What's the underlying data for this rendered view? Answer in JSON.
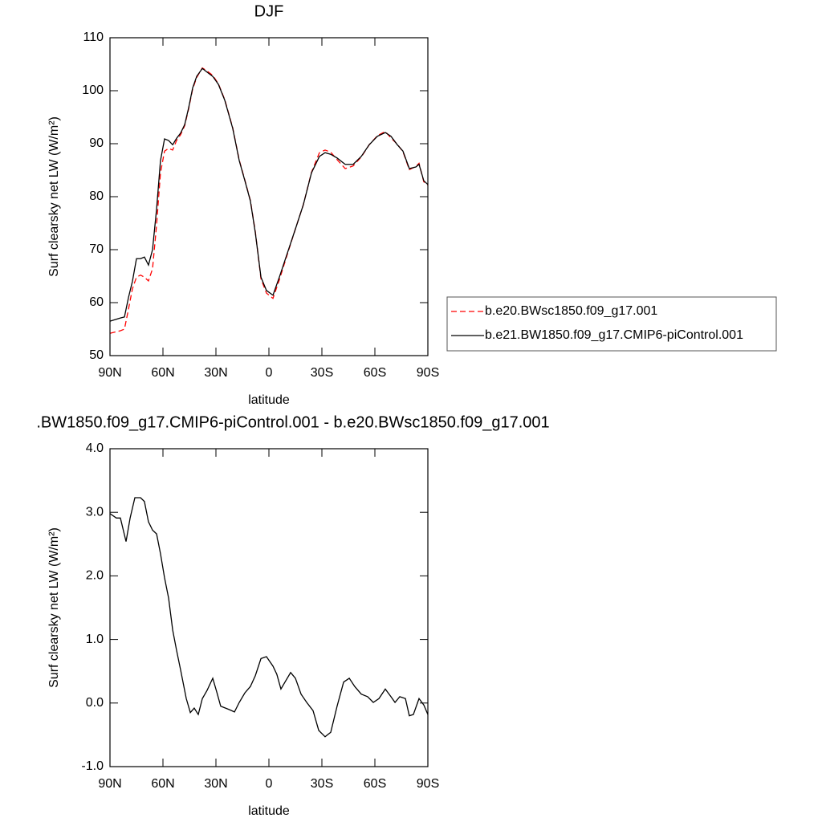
{
  "chart_data": [
    {
      "type": "line",
      "title": "DJF",
      "xlabel": "latitude",
      "ylabel": "Surf clearsky net LW (W/m²)",
      "x": [
        90,
        84.1,
        81.8,
        79.5,
        77.3,
        75.0,
        72.7,
        70.5,
        68.2,
        65.9,
        63.6,
        61.4,
        59.1,
        56.8,
        54.5,
        52.3,
        50.0,
        47.7,
        45.5,
        43.2,
        40.9,
        37.7,
        35.0,
        31.8,
        28.6,
        25.0,
        20.5,
        16.8,
        13.6,
        10.5,
        7.7,
        4.5,
        1.4,
        -2.3,
        -5.9,
        -10.5,
        -15.0,
        -19.5,
        -24.1,
        -28.6,
        -31.8,
        -35.0,
        -38.6,
        -43.2,
        -47.7,
        -52.3,
        -56.8,
        -61.4,
        -65.9,
        -69.1,
        -72.7,
        -75.9,
        -79.5,
        -83.2,
        -85.0,
        -87.7,
        -90
      ],
      "series": [
        {
          "name": "b.e20.BWsc1850.f09_g17.001",
          "color": "#ff0000",
          "line_style": "dashed",
          "values": [
            54.2,
            54.7,
            55.0,
            58.8,
            62.6,
            64.8,
            65.2,
            64.8,
            64.1,
            66.4,
            74.7,
            84.5,
            88.6,
            89.1,
            88.8,
            90.6,
            91.7,
            93.4,
            96.5,
            100.3,
            102.5,
            104.3,
            103.7,
            102.9,
            101.3,
            98.3,
            93.0,
            86.9,
            83.1,
            79.3,
            73.4,
            64.5,
            61.8,
            60.8,
            64.3,
            69.2,
            73.9,
            78.5,
            84.6,
            88.3,
            88.8,
            88.4,
            87.0,
            85.3,
            85.8,
            87.5,
            89.8,
            91.5,
            92.3,
            91.1,
            89.9,
            88.5,
            85.1,
            85.7,
            86.3,
            82.8,
            82.2
          ]
        },
        {
          "name": "b.e21.BW1850.f09_g17.CMIP6-piControl.001",
          "color": "#000000",
          "line_style": "solid",
          "values": [
            56.5,
            57.1,
            57.3,
            61.0,
            64.0,
            68.3,
            68.3,
            68.6,
            67.1,
            70.0,
            77.7,
            86.8,
            90.9,
            90.6,
            89.8,
            91.0,
            92.0,
            93.6,
            96.7,
            100.5,
            102.7,
            104.2,
            103.5,
            102.7,
            101.2,
            98.2,
            92.9,
            86.8,
            83.0,
            79.2,
            73.2,
            64.8,
            62.3,
            61.4,
            64.8,
            69.4,
            73.9,
            78.5,
            84.5,
            87.6,
            88.3,
            88.0,
            87.3,
            86.1,
            86.1,
            87.6,
            89.8,
            91.4,
            92.1,
            91.4,
            89.8,
            88.6,
            85.3,
            85.6,
            86.1,
            83.0,
            82.3
          ]
        }
      ],
      "xlim": [
        90,
        -90
      ],
      "xticks": [
        {
          "value": 90,
          "label": "90N"
        },
        {
          "value": 60,
          "label": "60N"
        },
        {
          "value": 30,
          "label": "30N"
        },
        0,
        {
          "value": -30,
          "label": "30S"
        },
        {
          "value": -60,
          "label": "60S"
        },
        {
          "value": -90,
          "label": "90S"
        }
      ],
      "ylim": [
        50,
        110
      ],
      "yticks": [
        50,
        60,
        70,
        80,
        90,
        100,
        110
      ],
      "legend": true
    },
    {
      "type": "line",
      "title": ".BW1850.f09_g17.CMIP6-piControl.001 - b.e20.BWsc1850.f09_g17.001",
      "xlabel": "latitude",
      "ylabel": "Surf clearsky net LW (W/m²)",
      "x": [
        90,
        86.4,
        84.1,
        80.9,
        78.6,
        75.9,
        72.7,
        70.5,
        68.2,
        65.9,
        63.6,
        61.4,
        59.1,
        56.8,
        54.5,
        52.3,
        50.0,
        46.8,
        44.5,
        42.3,
        40.0,
        37.7,
        35.0,
        31.8,
        29.5,
        27.3,
        22.7,
        19.5,
        16.8,
        13.6,
        10.5,
        7.7,
        4.5,
        1.4,
        -2.3,
        -4.5,
        -6.8,
        -9.1,
        -12.3,
        -15.0,
        -18.2,
        -21.4,
        -25.0,
        -28.2,
        -31.8,
        -35.0,
        -38.6,
        -42.3,
        -45.5,
        -48.6,
        -52.3,
        -55.9,
        -59.1,
        -62.3,
        -65.9,
        -69.1,
        -71.4,
        -74.1,
        -77.3,
        -79.5,
        -81.8,
        -85.0,
        -87.7,
        -90
      ],
      "values": [
        2.98,
        2.91,
        2.91,
        2.54,
        2.91,
        3.23,
        3.23,
        3.17,
        2.85,
        2.72,
        2.66,
        2.35,
        1.97,
        1.65,
        1.15,
        0.83,
        0.52,
        0.07,
        -0.15,
        -0.08,
        -0.18,
        0.07,
        0.2,
        0.39,
        0.17,
        -0.05,
        -0.1,
        -0.14,
        0.01,
        0.16,
        0.26,
        0.43,
        0.7,
        0.73,
        0.58,
        0.45,
        0.22,
        0.33,
        0.48,
        0.39,
        0.14,
        0.01,
        -0.12,
        -0.43,
        -0.53,
        -0.46,
        -0.05,
        0.33,
        0.39,
        0.26,
        0.14,
        0.1,
        0.01,
        0.07,
        0.22,
        0.1,
        0.01,
        0.1,
        0.07,
        -0.2,
        -0.18,
        0.07,
        -0.03,
        -0.18
      ],
      "color": "#000000",
      "xlim": [
        90,
        -90
      ],
      "xticks": [
        {
          "value": 90,
          "label": "90N"
        },
        {
          "value": 60,
          "label": "60N"
        },
        {
          "value": 30,
          "label": "30N"
        },
        0,
        {
          "value": -30,
          "label": "30S"
        },
        {
          "value": -60,
          "label": "60S"
        },
        {
          "value": -90,
          "label": "90S"
        }
      ],
      "ylim": [
        -1,
        4
      ],
      "yticks": [
        {
          "value": -1,
          "label": "-1.0"
        },
        {
          "value": 0,
          "label": "0.0"
        },
        {
          "value": 1,
          "label": "1.0"
        },
        {
          "value": 2,
          "label": "2.0"
        },
        {
          "value": 3,
          "label": "3.0"
        },
        {
          "value": 4,
          "label": "4.0"
        }
      ]
    }
  ]
}
